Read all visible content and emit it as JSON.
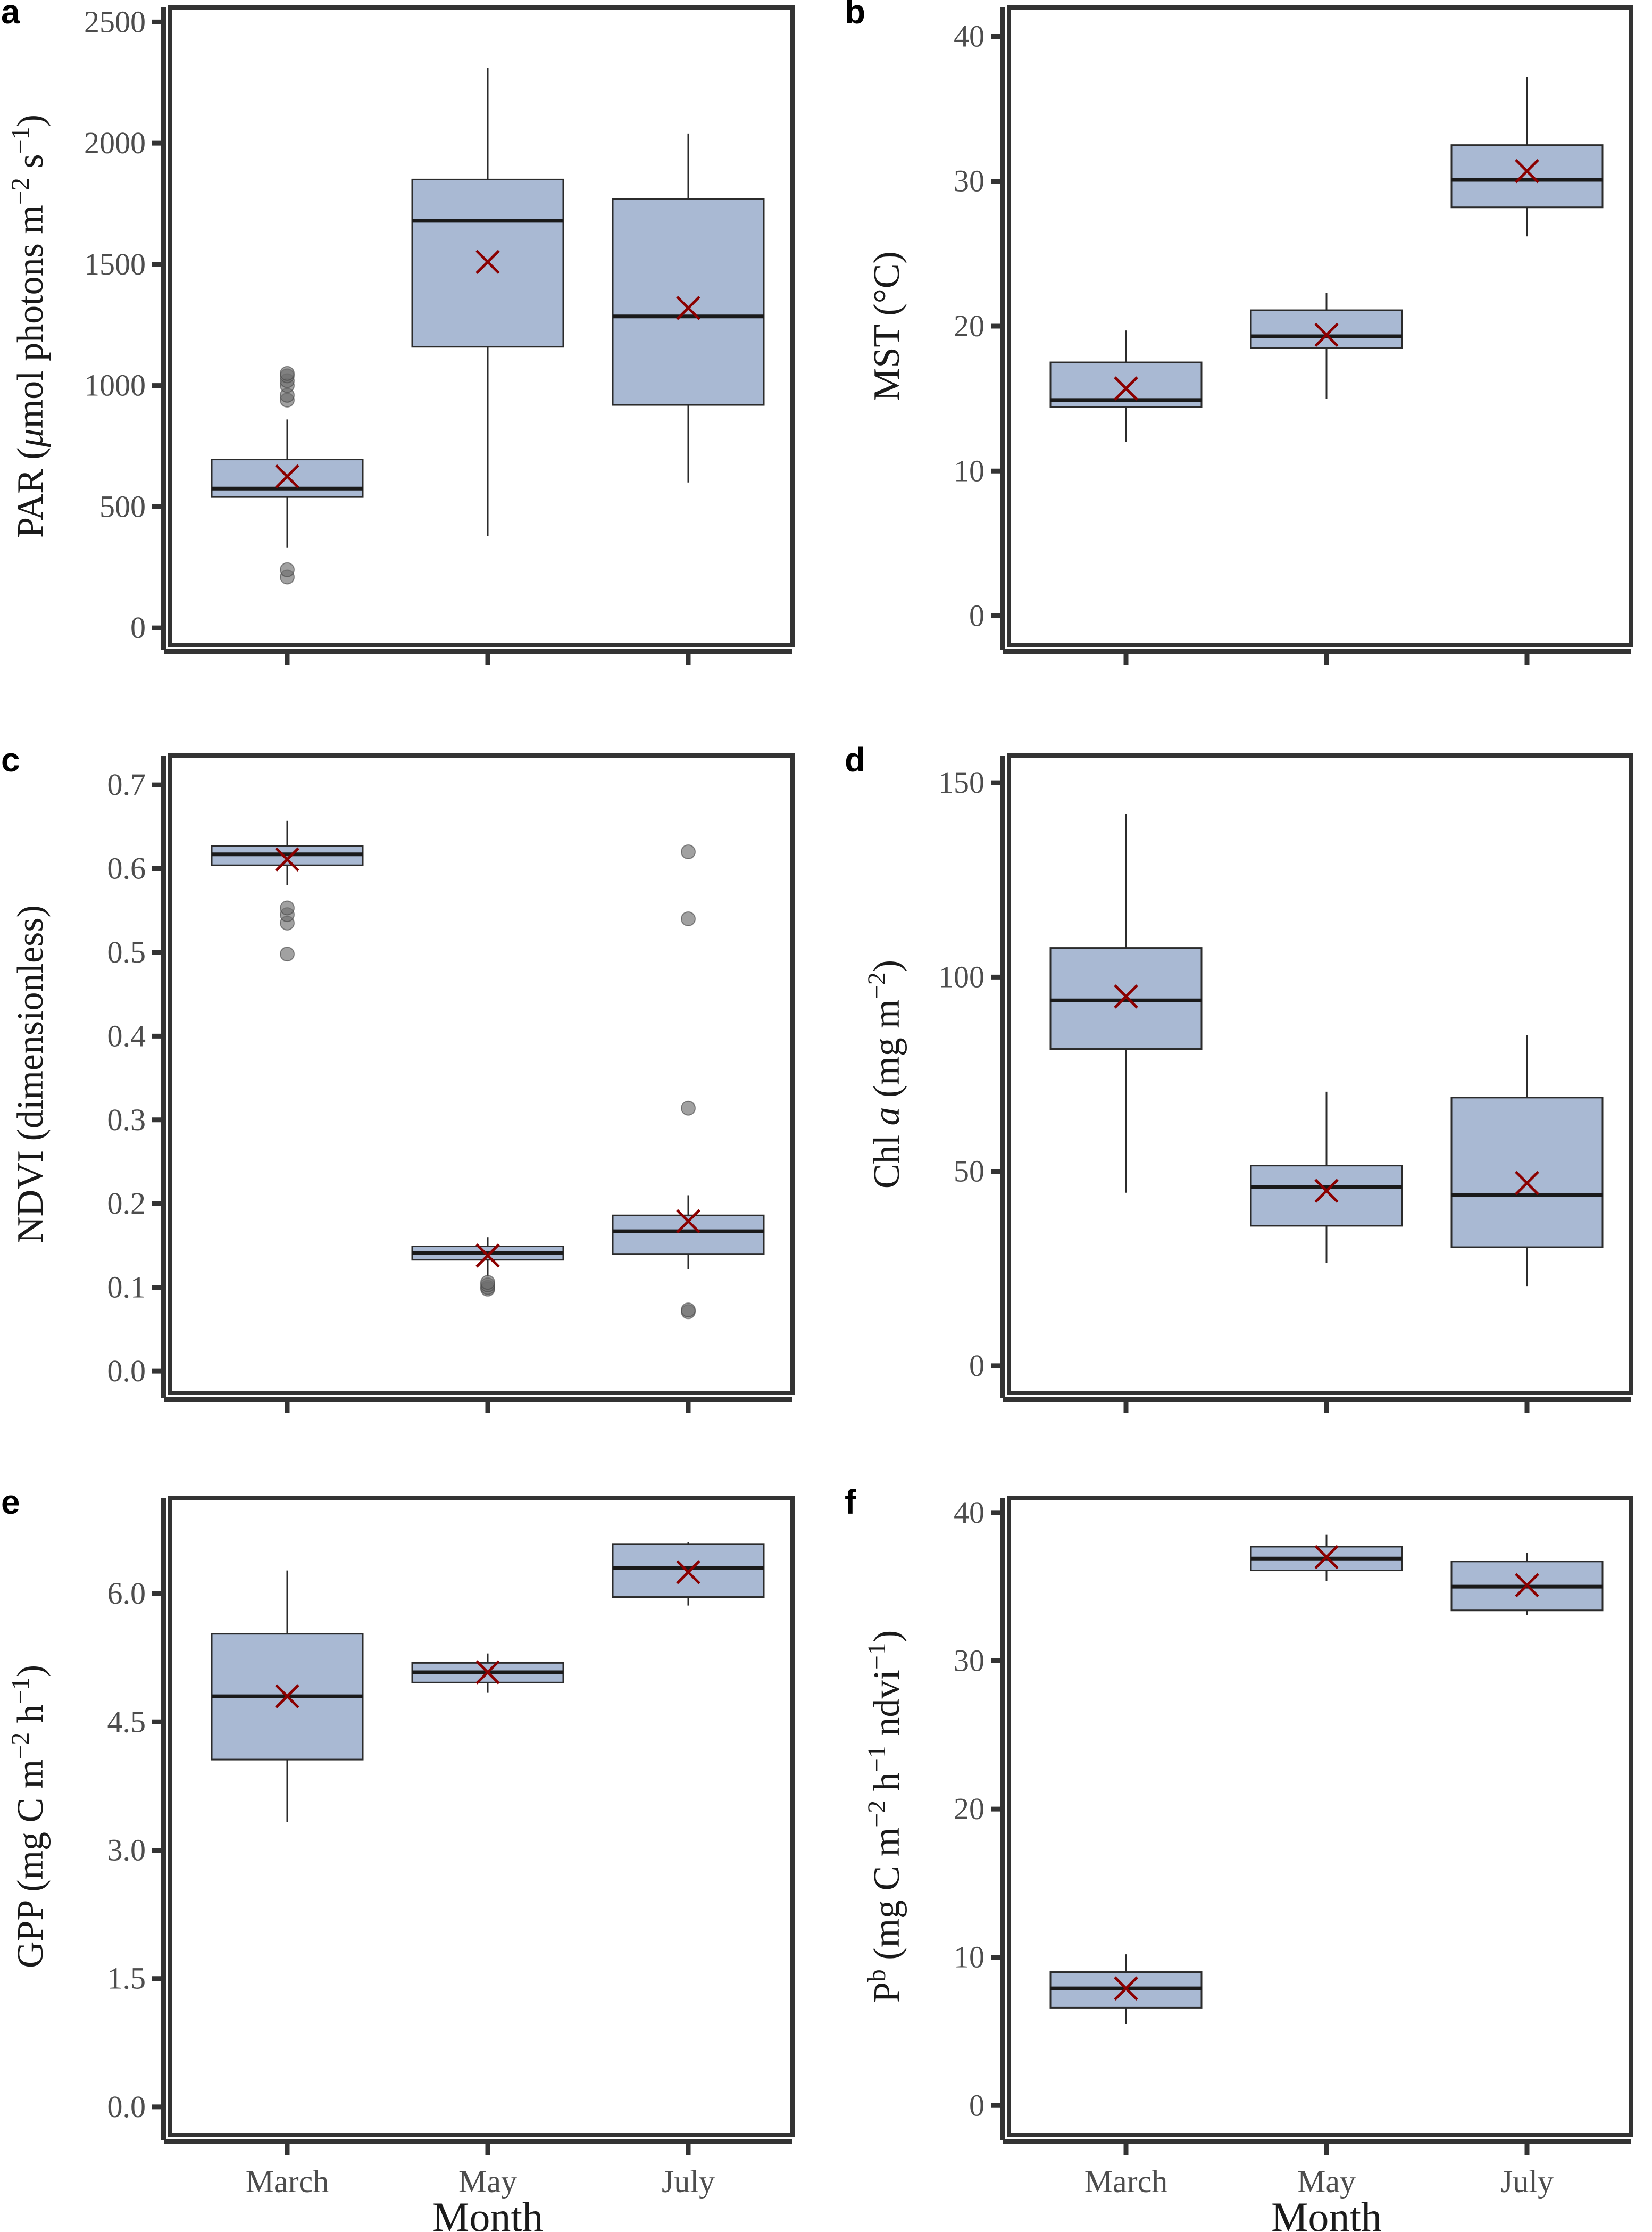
{
  "figure": {
    "categories": [
      "March",
      "May",
      "July"
    ],
    "xlabel": "Month",
    "colors": {
      "box_fill": "#a9b9d3",
      "box_stroke": "#2b2b2b",
      "mean_marker": "#8b0000",
      "outlier": "#6e6e6e",
      "frame": "#333333"
    }
  },
  "chart_data": [
    {
      "panel": "a",
      "type": "box",
      "ylabel_parts": [
        {
          "t": "PAR ("
        },
        {
          "t": "μ",
          "style": "italic"
        },
        {
          "t": "mol photons m"
        },
        {
          "t": "−2",
          "sup": true
        },
        {
          "t": " s"
        },
        {
          "t": "−1",
          "sup": true
        },
        {
          "t": ")"
        }
      ],
      "ylim": [
        -70,
        2560
      ],
      "yticks": [
        0,
        500,
        1000,
        1500,
        2000,
        2500
      ],
      "tick_labels": [
        "0",
        "500",
        "1000",
        "1500",
        "2000",
        "2500"
      ],
      "categories": [
        "March",
        "May",
        "July"
      ],
      "boxes": [
        {
          "category": "March",
          "whisker_low": 330,
          "q1": 540,
          "median": 575,
          "q3": 695,
          "whisker_high": 860,
          "mean": 625,
          "outliers": [
            210,
            240,
            940,
            960,
            1000,
            1020,
            1040,
            1050
          ]
        },
        {
          "category": "May",
          "whisker_low": 380,
          "q1": 1160,
          "median": 1680,
          "q3": 1850,
          "whisker_high": 2310,
          "mean": 1510,
          "outliers": []
        },
        {
          "category": "July",
          "whisker_low": 600,
          "q1": 920,
          "median": 1285,
          "q3": 1770,
          "whisker_high": 2040,
          "mean": 1320,
          "outliers": []
        }
      ]
    },
    {
      "panel": "b",
      "type": "box",
      "ylabel_parts": [
        {
          "t": "MST (°C)"
        }
      ],
      "ylim": [
        -2,
        42
      ],
      "yticks": [
        0,
        10,
        20,
        30,
        40
      ],
      "tick_labels": [
        "0",
        "10",
        "20",
        "30",
        "40"
      ],
      "categories": [
        "March",
        "May",
        "July"
      ],
      "boxes": [
        {
          "category": "March",
          "whisker_low": 12.0,
          "q1": 14.4,
          "median": 14.9,
          "q3": 17.5,
          "whisker_high": 19.7,
          "mean": 15.7,
          "outliers": []
        },
        {
          "category": "May",
          "whisker_low": 15.0,
          "q1": 18.5,
          "median": 19.3,
          "q3": 21.1,
          "whisker_high": 22.3,
          "mean": 19.4,
          "outliers": []
        },
        {
          "category": "July",
          "whisker_low": 26.2,
          "q1": 28.2,
          "median": 30.1,
          "q3": 32.5,
          "whisker_high": 37.2,
          "mean": 30.7,
          "outliers": []
        }
      ]
    },
    {
      "panel": "c",
      "type": "box",
      "ylabel_parts": [
        {
          "t": "NDVI (dimensionless)"
        }
      ],
      "ylim": [
        -0.026,
        0.735
      ],
      "yticks": [
        0.0,
        0.1,
        0.2,
        0.3,
        0.4,
        0.5,
        0.6,
        0.7
      ],
      "tick_labels": [
        "0.0",
        "0.1",
        "0.2",
        "0.3",
        "0.4",
        "0.5",
        "0.6",
        "0.7"
      ],
      "categories": [
        "March",
        "May",
        "July"
      ],
      "boxes": [
        {
          "category": "March",
          "whisker_low": 0.58,
          "q1": 0.604,
          "median": 0.617,
          "q3": 0.627,
          "whisker_high": 0.657,
          "mean": 0.611,
          "outliers": [
            0.498,
            0.535,
            0.545,
            0.553
          ]
        },
        {
          "category": "May",
          "whisker_low": 0.113,
          "q1": 0.133,
          "median": 0.141,
          "q3": 0.149,
          "whisker_high": 0.16,
          "mean": 0.138,
          "outliers": [
            0.098,
            0.1,
            0.103,
            0.106
          ]
        },
        {
          "category": "July",
          "whisker_low": 0.122,
          "q1": 0.14,
          "median": 0.167,
          "q3": 0.186,
          "whisker_high": 0.21,
          "mean": 0.179,
          "outliers": [
            0.071,
            0.073,
            0.314,
            0.54,
            0.62
          ]
        }
      ]
    },
    {
      "panel": "d",
      "type": "box",
      "ylabel_parts": [
        {
          "t": "Chl "
        },
        {
          "t": "a",
          "style": "italic"
        },
        {
          "t": " (mg m"
        },
        {
          "t": "−2",
          "sup": true
        },
        {
          "t": ")"
        }
      ],
      "ylim": [
        -7,
        157
      ],
      "yticks": [
        0,
        50,
        100,
        150
      ],
      "tick_labels": [
        "0",
        "50",
        "100",
        "150"
      ],
      "categories": [
        "March",
        "May",
        "July"
      ],
      "boxes": [
        {
          "category": "March",
          "whisker_low": 44.5,
          "q1": 81.5,
          "median": 94.0,
          "q3": 107.5,
          "whisker_high": 142.0,
          "mean": 95.0,
          "outliers": []
        },
        {
          "category": "May",
          "whisker_low": 26.5,
          "q1": 36.0,
          "median": 46.0,
          "q3": 51.5,
          "whisker_high": 70.5,
          "mean": 45.0,
          "outliers": []
        },
        {
          "category": "July",
          "whisker_low": 20.5,
          "q1": 30.5,
          "median": 44.0,
          "q3": 69.0,
          "whisker_high": 85.0,
          "mean": 47.0,
          "outliers": []
        }
      ]
    },
    {
      "panel": "e",
      "type": "box",
      "ylabel_parts": [
        {
          "t": "GPP (mg C m"
        },
        {
          "t": "−2",
          "sup": true
        },
        {
          "t": " h"
        },
        {
          "t": "−1",
          "sup": true
        },
        {
          "t": ")"
        }
      ],
      "ylim": [
        -0.33,
        7.12
      ],
      "yticks": [
        0.0,
        1.5,
        3.0,
        4.5,
        6.0
      ],
      "tick_labels": [
        "0.0",
        "1.5",
        "3.0",
        "4.5",
        "6.0"
      ],
      "categories": [
        "March",
        "May",
        "July"
      ],
      "boxes": [
        {
          "category": "March",
          "whisker_low": 3.33,
          "q1": 4.06,
          "median": 4.8,
          "q3": 5.53,
          "whisker_high": 6.27,
          "mean": 4.8,
          "outliers": []
        },
        {
          "category": "May",
          "whisker_low": 4.84,
          "q1": 4.96,
          "median": 5.08,
          "q3": 5.19,
          "whisker_high": 5.3,
          "mean": 5.08,
          "outliers": []
        },
        {
          "category": "July",
          "whisker_low": 5.86,
          "q1": 5.96,
          "median": 6.3,
          "q3": 6.58,
          "whisker_high": 6.6,
          "mean": 6.25,
          "outliers": []
        }
      ]
    },
    {
      "panel": "f",
      "type": "box",
      "ylabel_parts": [
        {
          "t": "P"
        },
        {
          "t": "b",
          "sup": true
        },
        {
          "t": " (mg C m"
        },
        {
          "t": "−2",
          "sup": true
        },
        {
          "t": " h"
        },
        {
          "t": "−1",
          "sup": true
        },
        {
          "t": " ndvi"
        },
        {
          "t": "−1",
          "sup": true
        },
        {
          "t": ")"
        }
      ],
      "ylim": [
        -2,
        41
      ],
      "yticks": [
        0,
        10,
        20,
        30,
        40
      ],
      "tick_labels": [
        "0",
        "10",
        "20",
        "30",
        "40"
      ],
      "categories": [
        "March",
        "May",
        "July"
      ],
      "boxes": [
        {
          "category": "March",
          "whisker_low": 5.5,
          "q1": 6.6,
          "median": 7.9,
          "q3": 9.0,
          "whisker_high": 10.2,
          "mean": 7.9,
          "outliers": []
        },
        {
          "category": "May",
          "whisker_low": 35.4,
          "q1": 36.1,
          "median": 36.9,
          "q3": 37.7,
          "whisker_high": 38.5,
          "mean": 37.0,
          "outliers": []
        },
        {
          "category": "July",
          "whisker_low": 33.1,
          "q1": 33.4,
          "median": 35.0,
          "q3": 36.7,
          "whisker_high": 37.3,
          "mean": 35.1,
          "outliers": []
        }
      ]
    }
  ]
}
